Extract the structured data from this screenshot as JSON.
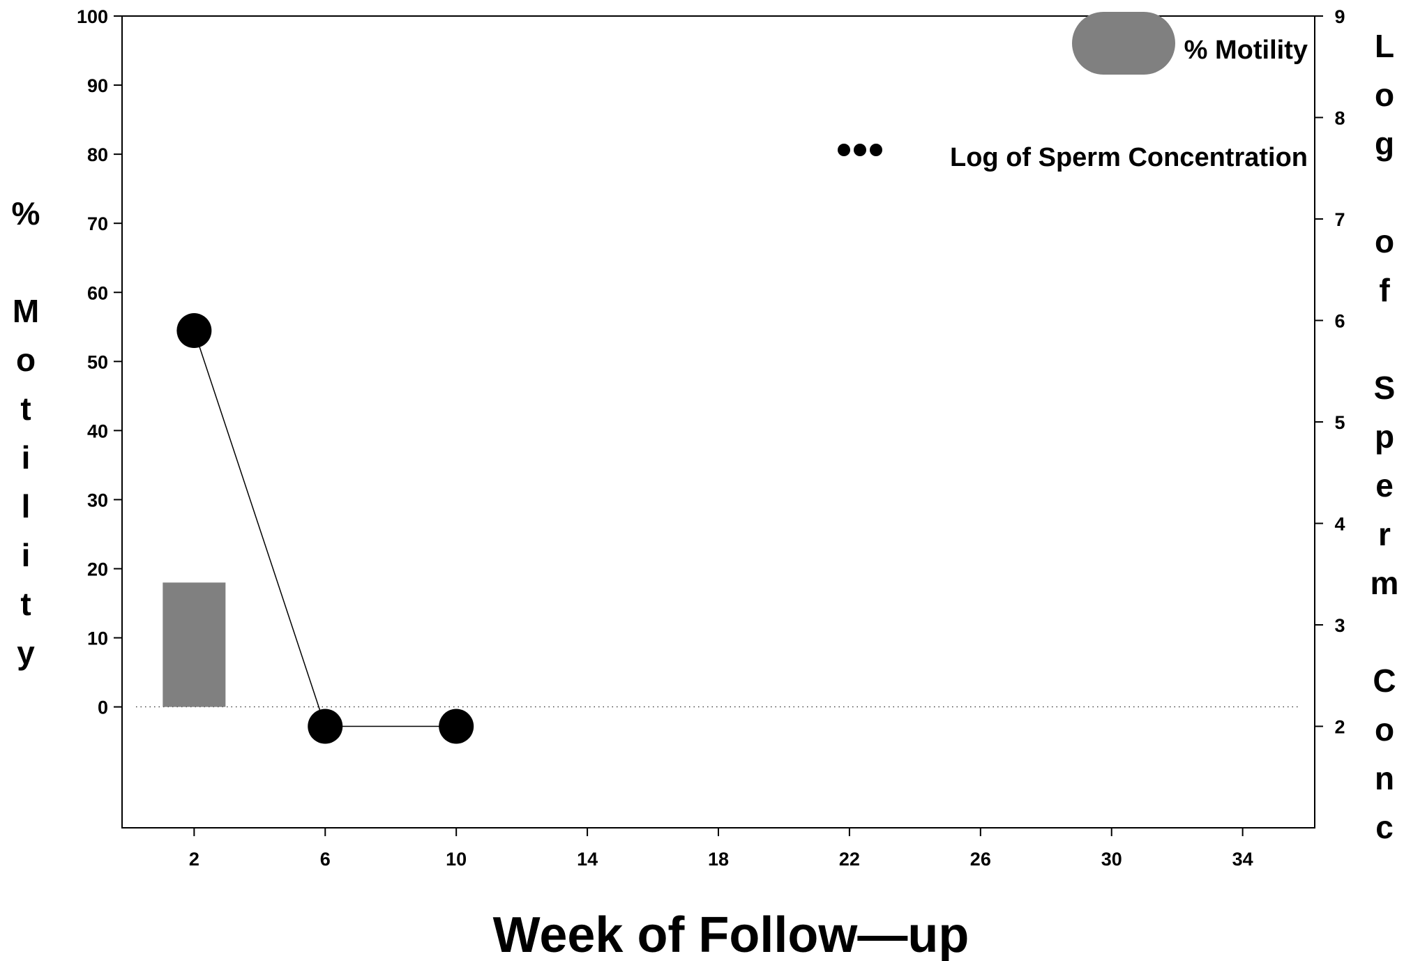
{
  "chart_data": {
    "type": "bar+line",
    "title": "",
    "xlabel": "Week of Follow—up",
    "ylabel_left": "% Motility",
    "ylabel_right": "Log of Sperm Conc",
    "x_ticks": [
      2,
      6,
      10,
      14,
      18,
      22,
      26,
      30,
      34
    ],
    "y_left_ticks": [
      0,
      10,
      20,
      30,
      40,
      50,
      60,
      70,
      80,
      90,
      100
    ],
    "y_right_ticks": [
      2,
      3,
      4,
      5,
      6,
      7,
      8,
      9
    ],
    "xlim": [
      -0.2,
      36.2
    ],
    "ylim_left": [
      -17.5,
      100
    ],
    "ylim_right": [
      1.0,
      9.0
    ],
    "legend_position": "top-right",
    "legend": {
      "motility": "% Motility",
      "concentration": "Log of Sperm Concentration"
    },
    "series": [
      {
        "name": "% Motility",
        "type": "bar",
        "axis": "left",
        "color": "#808080",
        "x": [
          2
        ],
        "values": [
          18
        ]
      },
      {
        "name": "Log of Sperm Concentration",
        "type": "line",
        "axis": "right",
        "color": "#000000",
        "x": [
          2,
          6,
          10
        ],
        "values": [
          5.9,
          2.0,
          2.0
        ]
      }
    ],
    "reference_line": {
      "axis": "left",
      "value": 0,
      "style": "dotted"
    },
    "grid": false
  }
}
